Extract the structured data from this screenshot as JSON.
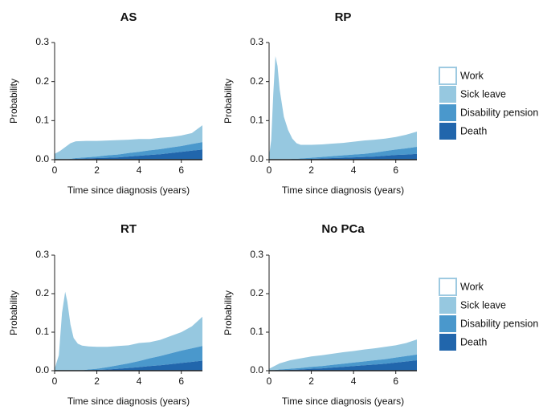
{
  "colors": {
    "work": "#ffffff",
    "work_border": "#9ecae1",
    "sick_leave": "#96c8e0",
    "disability_pension": "#4a98cc",
    "death": "#2166ac"
  },
  "legend": [
    "Work",
    "Sick leave",
    "Disability pension",
    "Death"
  ],
  "chart_data": [
    {
      "type": "area",
      "stacked": true,
      "title": "AS",
      "xlabel": "Time since diagnosis (years)",
      "ylabel": "Probability",
      "xlim": [
        0,
        7
      ],
      "ylim": [
        0,
        0.3
      ],
      "xticks": [
        0,
        2,
        4,
        6
      ],
      "yticks": [
        0.0,
        0.1,
        0.2,
        0.3
      ],
      "ytick_labels": [
        "0.0",
        "0.1",
        "0.2",
        "0.3"
      ],
      "x": [
        0,
        0.25,
        0.5,
        0.75,
        1,
        1.5,
        2,
        2.5,
        3,
        3.5,
        4,
        4.5,
        5,
        5.5,
        6,
        6.5,
        7
      ],
      "series": [
        {
          "name": "Death",
          "values": [
            0,
            0,
            0,
            0.001,
            0.002,
            0.003,
            0.004,
            0.005,
            0.006,
            0.008,
            0.01,
            0.012,
            0.014,
            0.017,
            0.02,
            0.023,
            0.026
          ]
        },
        {
          "name": "Disability pension",
          "values": [
            0,
            0,
            0,
            0.001,
            0.002,
            0.003,
            0.004,
            0.006,
            0.007,
            0.009,
            0.01,
            0.012,
            0.013,
            0.014,
            0.015,
            0.017,
            0.019
          ]
        },
        {
          "name": "Sick leave",
          "values": [
            0.015,
            0.022,
            0.032,
            0.04,
            0.043,
            0.042,
            0.04,
            0.038,
            0.037,
            0.034,
            0.033,
            0.029,
            0.029,
            0.027,
            0.027,
            0.028,
            0.043
          ]
        }
      ]
    },
    {
      "type": "area",
      "stacked": true,
      "title": "RP",
      "xlabel": "Time since diagnosis (years)",
      "ylabel": "Probability",
      "xlim": [
        0,
        7
      ],
      "ylim": [
        0,
        0.3
      ],
      "xticks": [
        0,
        2,
        4,
        6
      ],
      "yticks": [
        0.0,
        0.1,
        0.2,
        0.3
      ],
      "ytick_labels": [
        "0.0",
        "0.1",
        "0.2",
        "0.3"
      ],
      "x": [
        0,
        0.1,
        0.2,
        0.3,
        0.4,
        0.5,
        0.7,
        0.9,
        1.1,
        1.3,
        1.5,
        2,
        2.5,
        3,
        3.5,
        4,
        4.5,
        5,
        5.5,
        6,
        6.5,
        7
      ],
      "series": [
        {
          "name": "Death",
          "values": [
            0,
            0,
            0,
            0,
            0,
            0,
            0,
            0,
            0.001,
            0.001,
            0.001,
            0.002,
            0.003,
            0.004,
            0.005,
            0.006,
            0.007,
            0.008,
            0.01,
            0.012,
            0.013,
            0.015
          ]
        },
        {
          "name": "Disability pension",
          "values": [
            0,
            0,
            0,
            0,
            0,
            0,
            0,
            0.001,
            0.001,
            0.001,
            0.002,
            0.003,
            0.004,
            0.005,
            0.006,
            0.007,
            0.008,
            0.01,
            0.012,
            0.014,
            0.016,
            0.018
          ]
        },
        {
          "name": "Sick leave",
          "values": [
            0.01,
            0.05,
            0.17,
            0.265,
            0.24,
            0.18,
            0.11,
            0.075,
            0.052,
            0.04,
            0.035,
            0.033,
            0.032,
            0.032,
            0.032,
            0.033,
            0.034,
            0.033,
            0.032,
            0.032,
            0.035,
            0.039
          ]
        }
      ]
    },
    {
      "type": "area",
      "stacked": true,
      "title": "RT",
      "xlabel": "Time since diagnosis (years)",
      "ylabel": "Probability",
      "xlim": [
        0,
        7
      ],
      "ylim": [
        0,
        0.3
      ],
      "xticks": [
        0,
        2,
        4,
        6
      ],
      "yticks": [
        0.0,
        0.1,
        0.2,
        0.3
      ],
      "ytick_labels": [
        "0.0",
        "0.1",
        "0.2",
        "0.3"
      ],
      "x": [
        0,
        0.2,
        0.35,
        0.5,
        0.6,
        0.75,
        0.9,
        1.1,
        1.3,
        1.6,
        2,
        2.5,
        3,
        3.5,
        4,
        4.5,
        5,
        5.5,
        6,
        6.5,
        7
      ],
      "series": [
        {
          "name": "Death",
          "values": [
            0,
            0,
            0,
            0,
            0,
            0,
            0,
            0,
            0,
            0.001,
            0.002,
            0.003,
            0.005,
            0.007,
            0.009,
            0.012,
            0.014,
            0.017,
            0.02,
            0.023,
            0.026
          ]
        },
        {
          "name": "Disability pension",
          "values": [
            0,
            0,
            0,
            0,
            0,
            0,
            0,
            0,
            0.001,
            0.002,
            0.003,
            0.006,
            0.009,
            0.012,
            0.016,
            0.02,
            0.024,
            0.028,
            0.032,
            0.035,
            0.038
          ]
        },
        {
          "name": "Sick leave",
          "values": [
            0.005,
            0.04,
            0.15,
            0.205,
            0.18,
            0.12,
            0.085,
            0.07,
            0.064,
            0.06,
            0.057,
            0.053,
            0.05,
            0.047,
            0.047,
            0.042,
            0.042,
            0.045,
            0.048,
            0.057,
            0.076
          ]
        }
      ]
    },
    {
      "type": "area",
      "stacked": true,
      "title": "No PCa",
      "xlabel": "Time since diagnosis (years)",
      "ylabel": "Probability",
      "xlim": [
        0,
        7
      ],
      "ylim": [
        0,
        0.3
      ],
      "xticks": [
        0,
        2,
        4,
        6
      ],
      "yticks": [
        0.0,
        0.1,
        0.2,
        0.3
      ],
      "ytick_labels": [
        "0.0",
        "0.1",
        "0.2",
        "0.3"
      ],
      "x": [
        0,
        0.5,
        1,
        1.5,
        2,
        2.5,
        3,
        3.5,
        4,
        4.5,
        5,
        5.5,
        6,
        6.5,
        7
      ],
      "series": [
        {
          "name": "Death",
          "values": [
            0,
            0.001,
            0.002,
            0.003,
            0.005,
            0.006,
            0.008,
            0.01,
            0.012,
            0.014,
            0.016,
            0.018,
            0.021,
            0.024,
            0.027
          ]
        },
        {
          "name": "Disability pension",
          "values": [
            0,
            0.002,
            0.003,
            0.004,
            0.005,
            0.006,
            0.007,
            0.008,
            0.009,
            0.01,
            0.011,
            0.012,
            0.013,
            0.014,
            0.015
          ]
        },
        {
          "name": "Sick leave",
          "values": [
            0.005,
            0.016,
            0.022,
            0.025,
            0.027,
            0.028,
            0.029,
            0.03,
            0.03,
            0.031,
            0.031,
            0.032,
            0.032,
            0.034,
            0.039
          ]
        }
      ]
    }
  ]
}
